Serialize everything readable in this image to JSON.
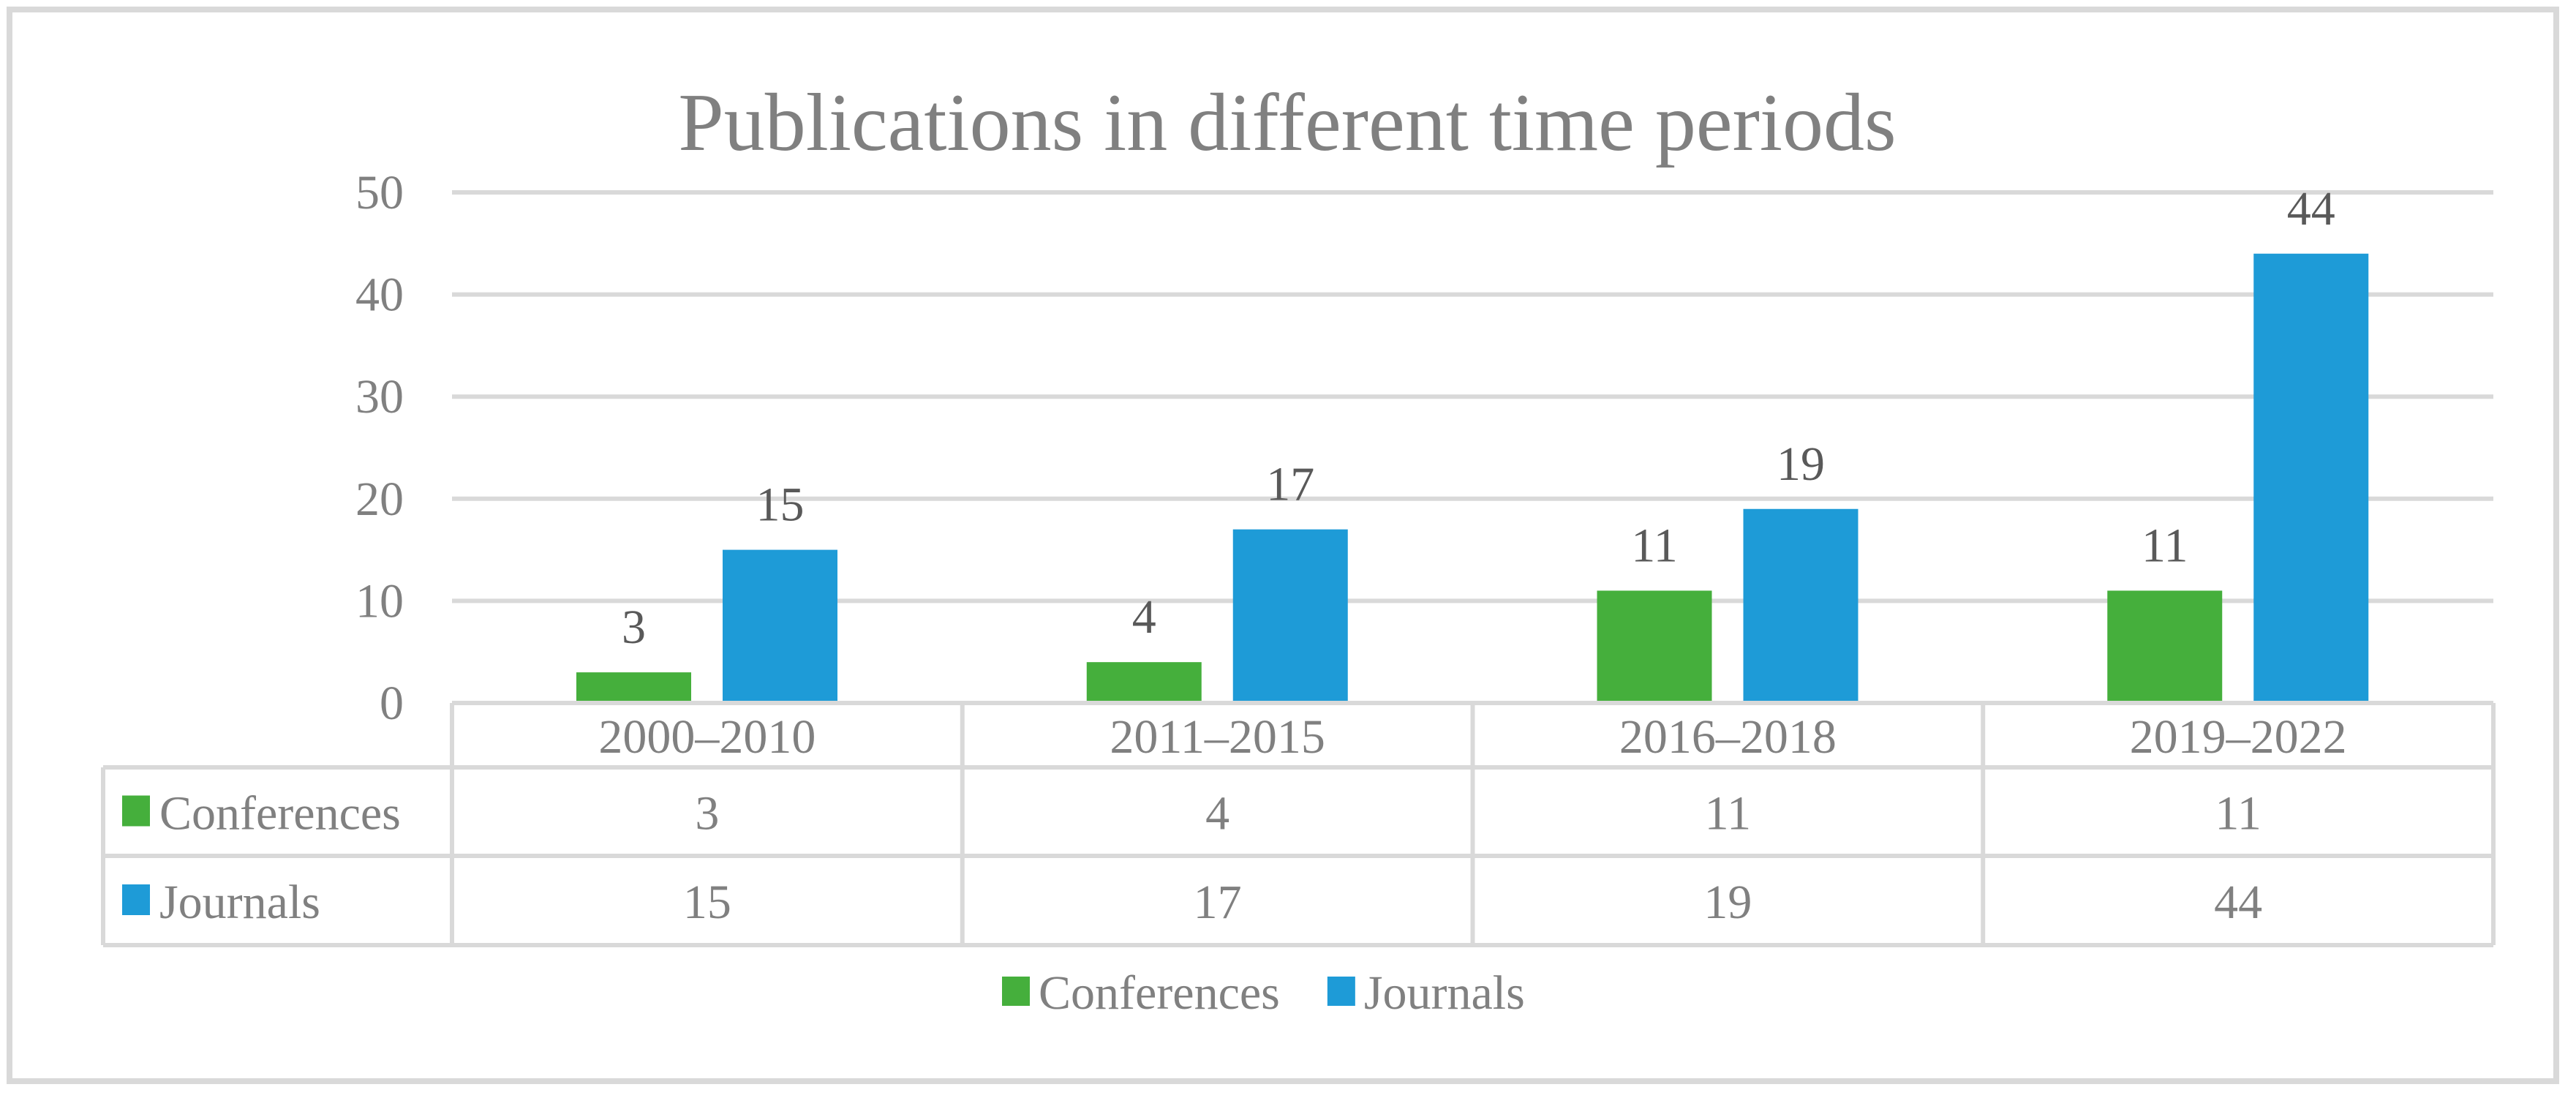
{
  "chart_data": {
    "type": "bar",
    "title": "Publications in different time periods",
    "categories": [
      "2000–2010",
      "2011–2015",
      "2016–2018",
      "2019–2022"
    ],
    "series": [
      {
        "name": "Conferences",
        "values": [
          3,
          4,
          11,
          11
        ],
        "color": "#45AF3C"
      },
      {
        "name": "Journals",
        "values": [
          15,
          17,
          19,
          44
        ],
        "color": "#1E9BD7"
      }
    ],
    "ylim": [
      0,
      50
    ],
    "yticks": [
      0,
      10,
      20,
      30,
      40,
      50
    ],
    "grid": true,
    "data_labels": true,
    "data_table": true,
    "legend": "bottom",
    "xlabel": "",
    "ylabel": ""
  }
}
